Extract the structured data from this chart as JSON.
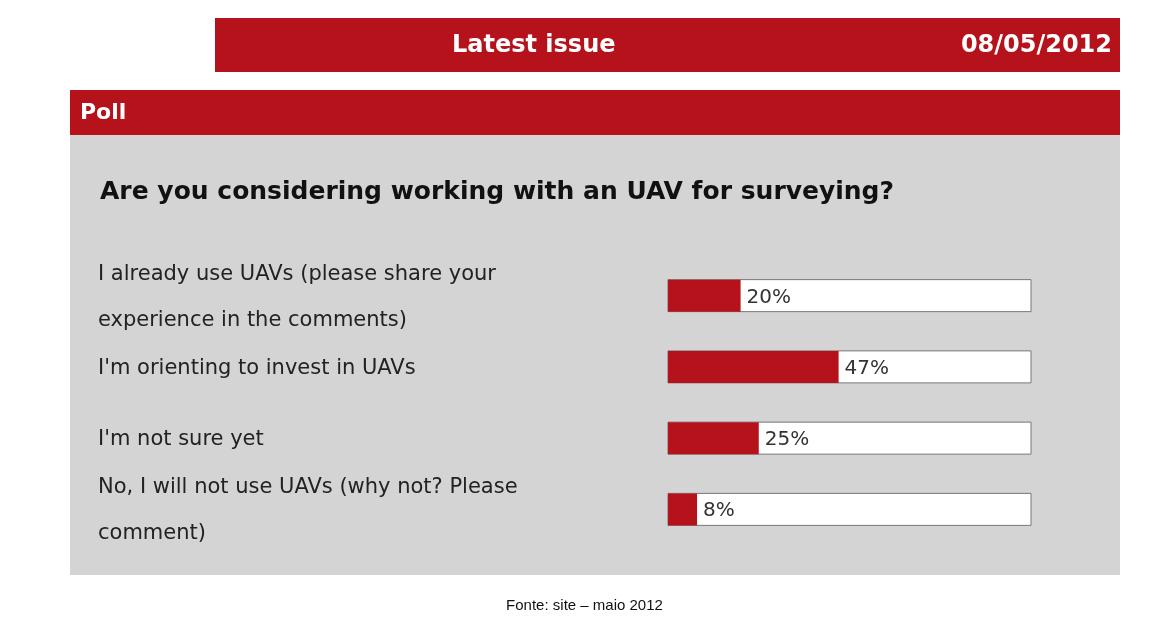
{
  "chart_data": {
    "type": "bar",
    "orientation": "horizontal",
    "title": "Are you considering working with an UAV for surveying?",
    "subtitle": "Poll",
    "annotations": [
      "Latest issue",
      "08/05/2012",
      "Fonte: site – maio 2012"
    ],
    "categories": [
      "I already use UAVs (please share your experience in the comments)",
      "I'm orienting to invest in UAVs",
      "I'm not sure yet",
      "No, I will not use UAVs (why not? Please comment)"
    ],
    "values": [
      20,
      47,
      25,
      8
    ],
    "value_labels": [
      "20%",
      "47%",
      "25%",
      "8%"
    ],
    "color": "#b5121b",
    "xlim": [
      0,
      100
    ]
  }
}
